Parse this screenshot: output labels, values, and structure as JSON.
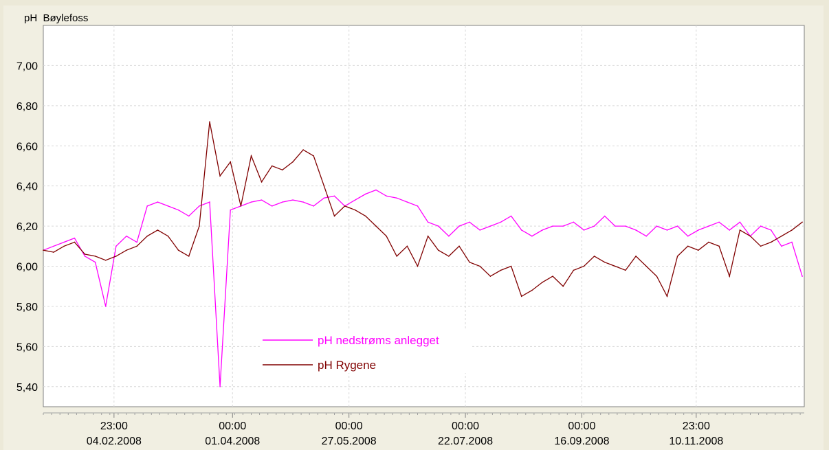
{
  "window": {
    "title": "pH  Bøylefoss"
  },
  "chart_data": {
    "type": "line",
    "title": "pH  Bøylefoss",
    "xlabel": "",
    "ylabel": "",
    "ylim": [
      5.3,
      7.2
    ],
    "yticks": [
      5.4,
      5.6,
      5.8,
      6.0,
      6.2,
      6.4,
      6.6,
      6.8,
      7.0
    ],
    "ytick_labels": [
      "5,40",
      "5,60",
      "5,80",
      "6,00",
      "6,20",
      "6,40",
      "6,60",
      "6,80",
      "7,00"
    ],
    "xticks": [
      {
        "time": "23:00",
        "date": "04.02.2008"
      },
      {
        "time": "00:00",
        "date": "01.04.2008"
      },
      {
        "time": "00:00",
        "date": "27.05.2008"
      },
      {
        "time": "00:00",
        "date": "22.07.2008"
      },
      {
        "time": "00:00",
        "date": "16.09.2008"
      },
      {
        "time": "23:00",
        "date": "10.11.2008"
      }
    ],
    "grid": true,
    "legend_position": "bottom-center",
    "colors": {
      "nedstroms": "#ff00ff",
      "rygene": "#800000",
      "background": "#ffffff",
      "frame": "#ece9d8"
    },
    "series": [
      {
        "name": "pH nedstrøms anlegget",
        "color": "#ff00ff",
        "x": [
          "2008-01-01",
          "2008-01-06",
          "2008-01-11",
          "2008-01-16",
          "2008-01-21",
          "2008-01-26",
          "2008-01-31",
          "2008-02-05",
          "2008-02-10",
          "2008-02-15",
          "2008-02-20",
          "2008-02-25",
          "2008-03-01",
          "2008-03-06",
          "2008-03-11",
          "2008-03-16",
          "2008-03-21",
          "2008-03-26",
          "2008-03-31",
          "2008-04-05",
          "2008-04-10",
          "2008-04-15",
          "2008-04-20",
          "2008-04-25",
          "2008-04-30",
          "2008-05-05",
          "2008-05-10",
          "2008-05-15",
          "2008-05-20",
          "2008-05-25",
          "2008-05-30",
          "2008-06-04",
          "2008-06-09",
          "2008-06-14",
          "2008-06-19",
          "2008-06-24",
          "2008-06-29",
          "2008-07-04",
          "2008-07-09",
          "2008-07-14",
          "2008-07-19",
          "2008-07-24",
          "2008-07-29",
          "2008-08-03",
          "2008-08-08",
          "2008-08-13",
          "2008-08-18",
          "2008-08-23",
          "2008-08-28",
          "2008-09-02",
          "2008-09-07",
          "2008-09-12",
          "2008-09-17",
          "2008-09-22",
          "2008-09-27",
          "2008-10-02",
          "2008-10-07",
          "2008-10-12",
          "2008-10-17",
          "2008-10-22",
          "2008-10-27",
          "2008-11-01",
          "2008-11-06",
          "2008-11-11",
          "2008-11-16",
          "2008-11-21",
          "2008-11-26",
          "2008-12-01",
          "2008-12-06",
          "2008-12-11",
          "2008-12-16",
          "2008-12-21",
          "2008-12-26",
          "2008-12-31"
        ],
        "values": [
          6.08,
          6.1,
          6.12,
          6.14,
          6.05,
          6.02,
          5.8,
          6.1,
          6.15,
          6.12,
          6.3,
          6.32,
          6.3,
          6.28,
          6.25,
          6.3,
          6.32,
          5.4,
          6.28,
          6.3,
          6.32,
          6.33,
          6.3,
          6.32,
          6.33,
          6.32,
          6.3,
          6.34,
          6.35,
          6.3,
          6.33,
          6.36,
          6.38,
          6.35,
          6.34,
          6.32,
          6.3,
          6.22,
          6.2,
          6.15,
          6.2,
          6.22,
          6.18,
          6.2,
          6.22,
          6.25,
          6.18,
          6.15,
          6.18,
          6.2,
          6.2,
          6.22,
          6.18,
          6.2,
          6.25,
          6.2,
          6.2,
          6.18,
          6.15,
          6.2,
          6.18,
          6.2,
          6.15,
          6.18,
          6.2,
          6.22,
          6.18,
          6.22,
          6.15,
          6.2,
          6.18,
          6.1,
          6.12,
          5.95
        ]
      },
      {
        "name": "pH Rygene",
        "color": "#800000",
        "x": [
          "2008-01-01",
          "2008-01-06",
          "2008-01-11",
          "2008-01-16",
          "2008-01-21",
          "2008-01-26",
          "2008-01-31",
          "2008-02-05",
          "2008-02-10",
          "2008-02-15",
          "2008-02-20",
          "2008-02-25",
          "2008-03-01",
          "2008-03-06",
          "2008-03-11",
          "2008-03-16",
          "2008-03-21",
          "2008-03-26",
          "2008-03-31",
          "2008-04-05",
          "2008-04-10",
          "2008-04-15",
          "2008-04-20",
          "2008-04-25",
          "2008-04-30",
          "2008-05-05",
          "2008-05-10",
          "2008-05-15",
          "2008-05-20",
          "2008-05-25",
          "2008-05-30",
          "2008-06-04",
          "2008-06-09",
          "2008-06-14",
          "2008-06-19",
          "2008-06-24",
          "2008-06-29",
          "2008-07-04",
          "2008-07-09",
          "2008-07-14",
          "2008-07-19",
          "2008-07-24",
          "2008-07-29",
          "2008-08-03",
          "2008-08-08",
          "2008-08-13",
          "2008-08-18",
          "2008-08-23",
          "2008-08-28",
          "2008-09-02",
          "2008-09-07",
          "2008-09-12",
          "2008-09-17",
          "2008-09-22",
          "2008-09-27",
          "2008-10-02",
          "2008-10-07",
          "2008-10-12",
          "2008-10-17",
          "2008-10-22",
          "2008-10-27",
          "2008-11-01",
          "2008-11-06",
          "2008-11-11",
          "2008-11-16",
          "2008-11-21",
          "2008-11-26",
          "2008-12-01",
          "2008-12-06",
          "2008-12-11",
          "2008-12-16",
          "2008-12-21",
          "2008-12-26",
          "2008-12-31"
        ],
        "values": [
          6.08,
          6.07,
          6.1,
          6.12,
          6.06,
          6.05,
          6.03,
          6.05,
          6.08,
          6.1,
          6.15,
          6.18,
          6.15,
          6.08,
          6.05,
          6.2,
          6.72,
          6.45,
          6.52,
          6.3,
          6.55,
          6.42,
          6.5,
          6.48,
          6.52,
          6.58,
          6.55,
          6.4,
          6.25,
          6.3,
          6.28,
          6.25,
          6.2,
          6.15,
          6.05,
          6.1,
          6.0,
          6.15,
          6.08,
          6.05,
          6.1,
          6.02,
          6.0,
          5.95,
          5.98,
          6.0,
          5.85,
          5.88,
          5.92,
          5.95,
          5.9,
          5.98,
          6.0,
          6.05,
          6.02,
          6.0,
          5.98,
          6.05,
          6.0,
          5.95,
          5.85,
          6.05,
          6.1,
          6.08,
          6.12,
          6.1,
          5.95,
          6.18,
          6.15,
          6.1,
          6.12,
          6.15,
          6.18,
          6.22
        ]
      }
    ]
  }
}
